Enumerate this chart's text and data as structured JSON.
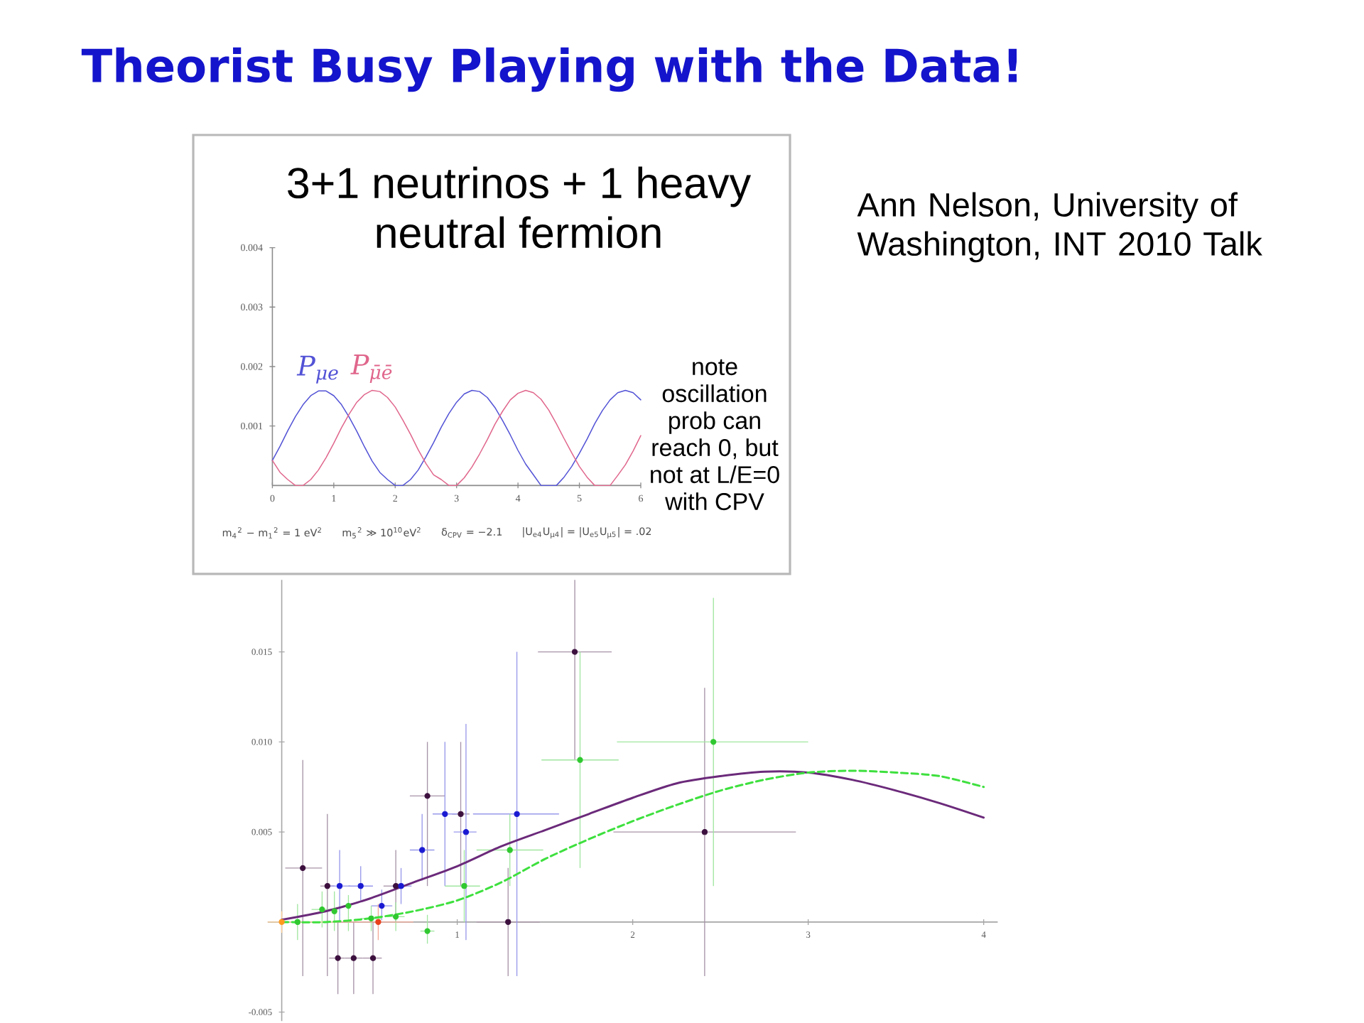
{
  "chart_data": [
    {
      "type": "line",
      "title": "Theorist Busy Playing with the Data!",
      "subtitle": "3+1 neutrinos + 1 heavy neutral fermion",
      "x": [
        0,
        0.125,
        0.25,
        0.375,
        0.5,
        0.625,
        0.75,
        0.875,
        1,
        1.125,
        1.25,
        1.375,
        1.5,
        1.625,
        1.75,
        1.875,
        2,
        2.125,
        2.25,
        2.375,
        2.5,
        2.625,
        2.75,
        2.875,
        3,
        3.125,
        3.25,
        3.375,
        3.5,
        3.625,
        3.75,
        3.875,
        4,
        4.125,
        4.25,
        4.375,
        4.5,
        4.625,
        4.75,
        4.875,
        5,
        5.125,
        5.25,
        5.375,
        5.5,
        5.625,
        5.75,
        5.875,
        6
      ],
      "series": [
        {
          "name": "P$_{μe}$",
          "color": "#5252d6",
          "values": [
            0.00042,
            0.00066,
            0.00092,
            0.00116,
            0.00136,
            0.00151,
            0.00159,
            0.00159,
            0.00151,
            0.00136,
            0.00115,
            0.00091,
            0.00065,
            0.00041,
            0.00022,
            0.0001,
            0,
            0,
            0.0001,
            0.00026,
            0.00048,
            0.00072,
            0.00098,
            0.00121,
            0.0014,
            0.00154,
            0.0016,
            0.00158,
            0.00148,
            0.00131,
            0.00109,
            0.00085,
            0.00059,
            0.00036,
            0.00018,
            0,
            0,
            0,
            0.00014,
            0.00032,
            0.00054,
            0.00078,
            0.00104,
            0.00126,
            0.00144,
            0.00156,
            0.0016,
            0.00156,
            0.00144
          ]
        },
        {
          "name": "P$_{μ̄ē}$",
          "color": "#e0668c",
          "values": [
            0.00042,
            0.00022,
            0.0001,
            0,
            0,
            0.0001,
            0.00026,
            0.00047,
            0.00071,
            0.00097,
            0.0012,
            0.0014,
            0.00153,
            0.0016,
            0.00158,
            0.00148,
            0.00132,
            0.0011,
            0.00086,
            0.0006,
            0.00037,
            0.00018,
            0.0001,
            0,
            0,
            0.00013,
            0.00031,
            0.00053,
            0.00077,
            0.00103,
            0.00125,
            0.00144,
            0.00155,
            0.0016,
            0.00156,
            0.00145,
            0.00127,
            0.00104,
            0.00079,
            0.00055,
            0.00032,
            0.00014,
            0,
            0,
            0,
            0.00017,
            0.00035,
            0.00058,
            0.00084
          ]
        }
      ],
      "xlim": [
        0,
        6
      ],
      "ylim": [
        0,
        0.004
      ],
      "xticks": [
        0,
        1,
        2,
        3,
        4,
        5,
        6
      ],
      "yticks": [
        0.001,
        0.002,
        0.003,
        0.004
      ],
      "annotations": [
        "Ann Nelson, University of Washington, INT 2010 Talk",
        "note oscillation prob can reach 0, but not at L/E=0 with CPV",
        "m$_{4}$$^{2}$ − m$_{1}$$^{2}$ = 1 eV$^{2}$",
        "m$_{5}$$^{2}$ ≫ 10$^{10}$eV$^{2}$",
        "δ$_{CPV}$ = −2.1",
        "|U$_{e4}$U$_{μ4}$| = |U$_{e5}$U$_{μ5}$| = .02"
      ]
    },
    {
      "type": "scatter",
      "xlim": [
        -0.08,
        4.08
      ],
      "ylim": [
        -0.0055,
        0.019
      ],
      "xticks": [
        1,
        2,
        3,
        4
      ],
      "yticks": [
        -0.005,
        0.005,
        {
          "value": 0.01,
          "label": "0.010"
        },
        0.015
      ],
      "marker": "circle",
      "series": [
        {
          "color": "#3c103e",
          "x": [
            0.12,
            0.26,
            0.32,
            0.41,
            0.52,
            0.65,
            0.83,
            1.02,
            1.29,
            1.67,
            2.41
          ],
          "values": [
            0.003,
            0.002,
            -0.002,
            -0.002,
            -0.002,
            0.002,
            0.007,
            0.006,
            0,
            0.015,
            0.005
          ],
          "errors": [
            [
              -0.003,
              0.009
            ],
            [
              -0.003,
              0.006
            ],
            [
              -0.004,
              0
            ],
            [
              -0.004,
              0
            ],
            [
              -0.004,
              0
            ],
            [
              0,
              0.004
            ],
            [
              0.002,
              0.01
            ],
            [
              0.002,
              0.01
            ],
            [
              -0.003,
              0.003
            ],
            [
              0.009,
              0.019
            ],
            [
              -0.003,
              0.013
            ]
          ],
          "xerrors": [
            [
              0.02,
              0.23
            ],
            [
              0.22,
              0.3
            ],
            [
              0.27,
              0.36
            ],
            [
              0.36,
              0.46
            ],
            [
              0.46,
              0.57
            ],
            [
              0.58,
              0.7
            ],
            [
              0.73,
              0.93
            ],
            [
              0.97,
              1.07
            ],
            [
              1.11,
              1.47
            ],
            [
              1.46,
              1.88
            ],
            [
              1.89,
              2.93
            ]
          ]
        },
        {
          "color": "#1a1ad2",
          "x": [
            0.33,
            0.45,
            0.57,
            0.68,
            0.8,
            0.93,
            1.05,
            1.34
          ],
          "values": [
            0.002,
            0.002,
            0.0009,
            0.002,
            0.004,
            0.006,
            0.005,
            0.006
          ],
          "errors": [
            [
              0,
              0.004
            ],
            [
              0.0012,
              0.0031
            ],
            [
              0.0001,
              0.0018
            ],
            [
              0.001,
              0.003
            ],
            [
              0.0023,
              0.006
            ],
            [
              0.002,
              0.01
            ],
            [
              -0.001,
              0.011
            ],
            [
              -0.003,
              0.015
            ]
          ],
          "xerrors": [
            [
              0.27,
              0.39
            ],
            [
              0.38,
              0.52
            ],
            [
              0.51,
              0.63
            ],
            [
              0.63,
              0.74
            ],
            [
              0.73,
              0.87
            ],
            [
              0.86,
              1.0
            ],
            [
              0.98,
              1.11
            ],
            [
              1.09,
              1.58
            ]
          ]
        },
        {
          "color": "#2fc82f",
          "x": [
            0.09,
            0.23,
            0.3,
            0.38,
            0.51,
            0.65,
            0.83,
            1.04,
            1.3,
            1.7,
            2.46
          ],
          "values": [
            0,
            0.0007,
            0.0006,
            0.0009,
            0.0002,
            0.0003,
            -0.0005,
            0.002,
            0.004,
            0.009,
            0.01
          ],
          "errors": [
            [
              -0.001,
              0.001
            ],
            [
              -0.0003,
              0.0017
            ],
            [
              -0.0005,
              0.0017
            ],
            [
              -0.0005,
              0.0015
            ],
            [
              -0.0005,
              0.0009
            ],
            [
              -0.0005,
              0.0011
            ],
            [
              -0.0012,
              0.0004
            ],
            [
              0,
              0.004
            ],
            [
              0.002,
              0.006
            ],
            [
              0.003,
              0.015
            ],
            [
              0.002,
              0.018
            ]
          ],
          "xerrors": [
            null,
            [
              0.17,
              0.28
            ],
            null,
            null,
            [
              0.45,
              0.57
            ],
            [
              0.6,
              0.7
            ],
            [
              0.79,
              0.87
            ],
            [
              0.93,
              1.13
            ],
            [
              1.11,
              1.49
            ],
            [
              1.48,
              1.92
            ],
            [
              1.91,
              3.0
            ]
          ]
        },
        {
          "color": "#ff9a1f",
          "x": [
            0
          ],
          "values": [
            0
          ],
          "errors": [
            [
              -0.0006,
              0.0006
            ]
          ],
          "xerrors": [
            [
              -0.08,
              0.3
            ]
          ]
        },
        {
          "color": "#e8401a",
          "x": [
            0.55
          ],
          "values": [
            0
          ],
          "errors": [
            [
              -0.001,
              0.001
            ]
          ],
          "xerrors": [
            [
              0.3,
              0.75
            ]
          ]
        },
        {
          "type": "line",
          "marker": "none",
          "color": "#6b2a7a",
          "x": [
            0,
            0.25,
            0.5,
            0.75,
            1,
            1.25,
            1.5,
            1.75,
            2,
            2.25,
            2.5,
            2.75,
            3,
            3.25,
            3.5,
            3.75,
            4
          ],
          "values": [
            0.00013,
            0.0006,
            0.0013,
            0.0022,
            0.0031,
            0.0042,
            0.0051,
            0.006,
            0.0069,
            0.0077,
            0.0081,
            0.00835,
            0.0083,
            0.0079,
            0.0073,
            0.0066,
            0.0058
          ]
        },
        {
          "type": "line",
          "marker": "none",
          "line_style": "dashed",
          "color": "#3ee03e",
          "x": [
            0,
            0.25,
            0.5,
            0.75,
            1,
            1.25,
            1.5,
            1.75,
            2,
            2.25,
            2.5,
            2.75,
            3,
            3.25,
            3.5,
            3.75,
            4
          ],
          "values": [
            0,
            0,
            0.0002,
            0.0006,
            0.0012,
            0.0022,
            0.0035,
            0.0046,
            0.0056,
            0.0065,
            0.0073,
            0.0079,
            0.0083,
            0.0084,
            0.0083,
            0.0081,
            0.0075
          ]
        }
      ]
    }
  ]
}
